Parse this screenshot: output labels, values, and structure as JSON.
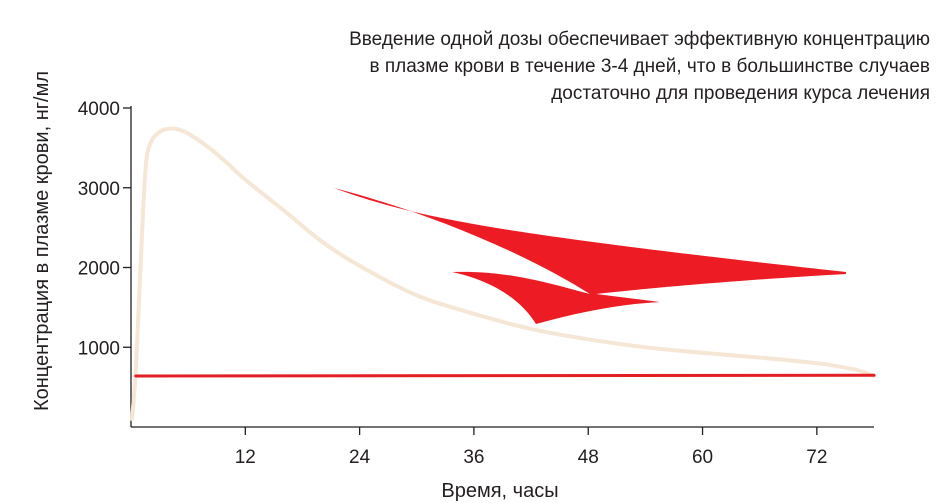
{
  "chart_data": {
    "type": "line",
    "xlabel": "Время, часы",
    "ylabel": "Концентрация в плазме крови, нг/мл",
    "xlim": [
      0,
      78
    ],
    "ylim": [
      0,
      4000
    ],
    "x_ticks": [
      12,
      24,
      36,
      48,
      60,
      72
    ],
    "y_ticks": [
      1000,
      2000,
      3000,
      4000
    ],
    "annotation": [
      "Введение одной дозы обеспечивает эффективную концентрацию",
      "в плазме крови в течение 3-4 дней, что в большинстве случаев",
      "достаточно для проведения курса лечения"
    ],
    "series": [
      {
        "color": "#f6e6d6",
        "x": [
          0.1,
          0.5,
          1,
          1.5,
          2,
          3,
          4,
          5,
          6,
          8,
          10,
          12,
          16,
          20,
          24,
          30,
          36,
          42,
          48,
          54,
          60,
          66,
          72,
          76,
          78
        ],
        "y": [
          100,
          700,
          2000,
          3200,
          3550,
          3700,
          3740,
          3730,
          3680,
          3520,
          3320,
          3100,
          2720,
          2330,
          2020,
          1650,
          1420,
          1230,
          1100,
          1000,
          930,
          870,
          800,
          720,
          640
        ]
      },
      {
        "color": "#e31e25",
        "x": [
          0.5,
          78
        ],
        "y": [
          640,
          650
        ]
      }
    ],
    "arrow_color": "#ed1c24"
  }
}
